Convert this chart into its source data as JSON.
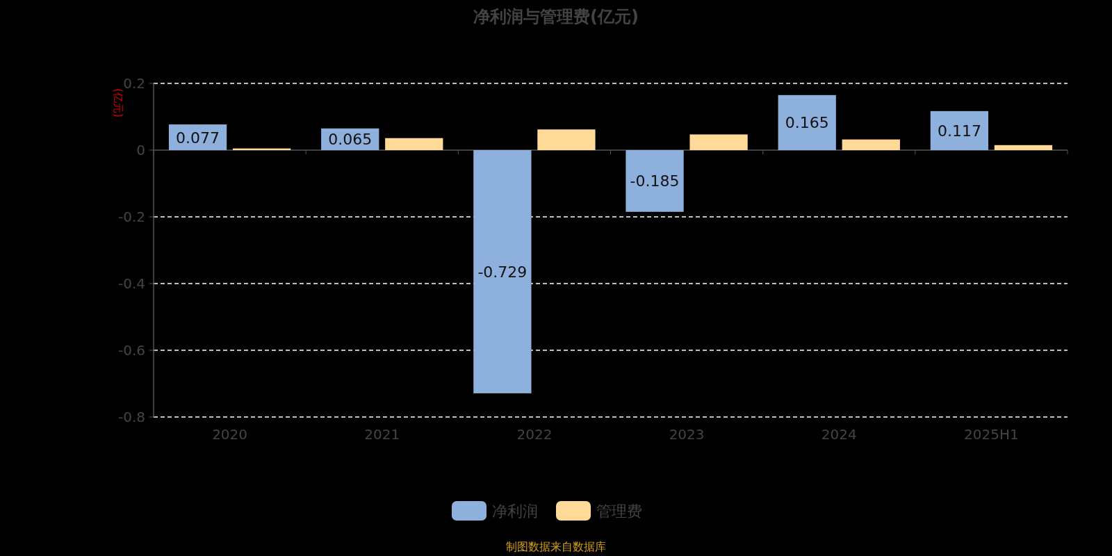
{
  "chart_data": {
    "type": "bar",
    "title": "净利润与管理费(亿元)",
    "ylabel": "(亿元)",
    "categories": [
      "2020",
      "2021",
      "2022",
      "2023",
      "2024",
      "2025H1"
    ],
    "series": [
      {
        "name": "净利润",
        "color": "#8eb0dc",
        "values": [
          0.077,
          0.065,
          -0.729,
          -0.185,
          0.165,
          0.117
        ],
        "value_labels": [
          "0.077",
          "0.065",
          "-0.729",
          "-0.185",
          "0.165",
          "0.117"
        ]
      },
      {
        "name": "管理费",
        "color": "#ffd998",
        "values": [
          0.005,
          0.036,
          0.062,
          0.047,
          0.032,
          0.015
        ]
      }
    ],
    "ylim": [
      -0.8,
      0.2
    ],
    "yticks": [
      0.2,
      0,
      -0.2,
      -0.4,
      -0.6,
      -0.8
    ],
    "grid": "y",
    "legend": "bottom",
    "annotations": [
      "制图数据来自数据库"
    ]
  }
}
